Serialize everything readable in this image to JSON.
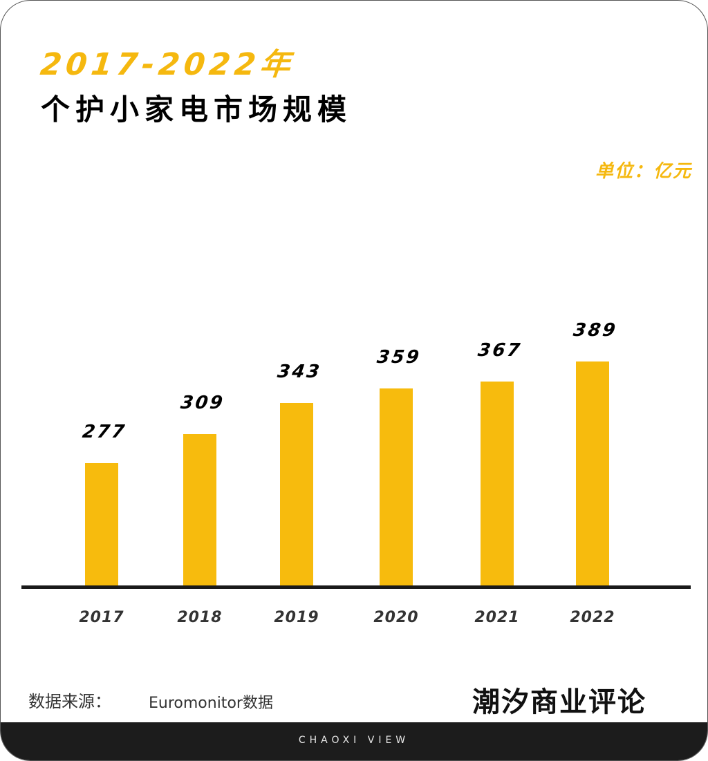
{
  "header": {
    "title_year": "2017-2022年",
    "title_main": "个护小家电市场规模",
    "unit": "单位：亿元"
  },
  "colors": {
    "accent": "#f5b80f",
    "bar": "#f7bb0d",
    "text": "#000000",
    "footer_bg": "#1c1c1c"
  },
  "chart_data": {
    "type": "bar",
    "title": "2017-2022年 个护小家电市场规模",
    "xlabel": "",
    "ylabel": "单位：亿元",
    "categories": [
      "2017",
      "2018",
      "2019",
      "2020",
      "2021",
      "2022"
    ],
    "values": [
      277,
      309,
      343,
      359,
      367,
      389
    ],
    "value_labels": [
      "277",
      "309",
      "343",
      "359",
      "367",
      "389"
    ],
    "grid": false,
    "legend": null,
    "data_labels": true
  },
  "footer": {
    "source_label": "数据来源：",
    "source_value": "Euromonitor数据",
    "logo": "潮汐商业评论",
    "brand_en": "CHAOXI VIEW"
  }
}
